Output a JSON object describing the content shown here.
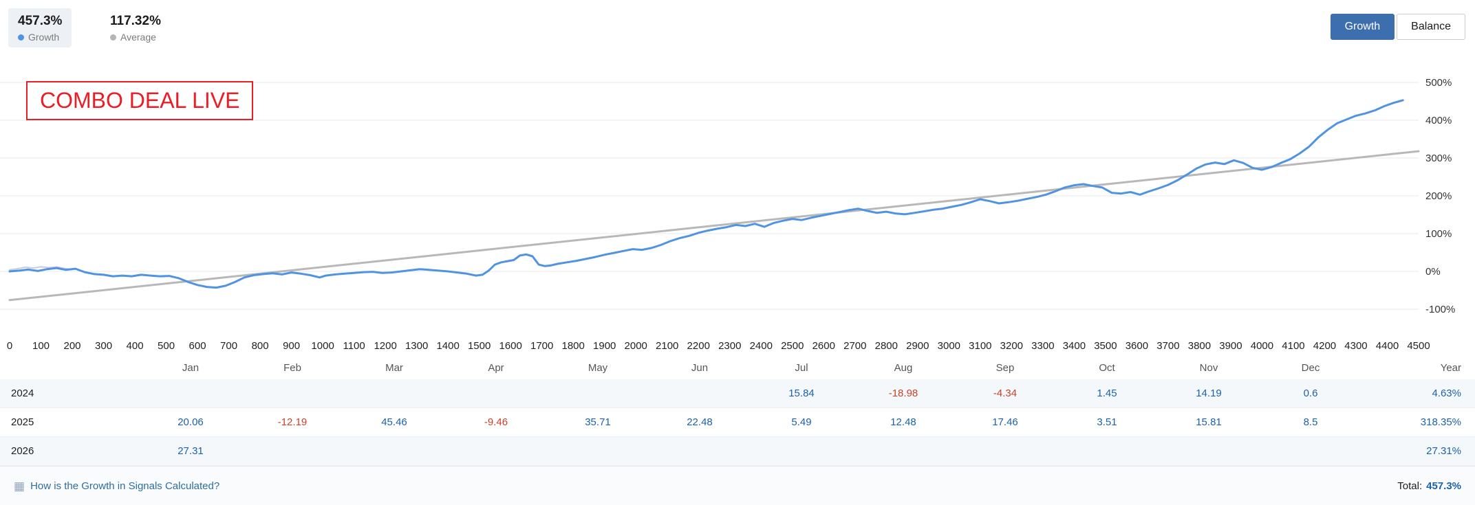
{
  "colors": {
    "accent": "#3d6fae",
    "positive": "#1b61ad",
    "negative": "#cc4125",
    "link": "#2e6da0",
    "badge": "#ec1c24",
    "dot_growth": "#4f93e2",
    "dot_average": "#b5b5b5"
  },
  "header": {
    "stats": [
      {
        "value": "457.3%",
        "label": "Growth"
      },
      {
        "value": "117.32%",
        "label": "Average"
      }
    ],
    "toggle": [
      {
        "label": "Growth"
      },
      {
        "label": "Balance"
      }
    ]
  },
  "overlay": {
    "badge": "COMBO DEAL LIVE"
  },
  "chart_data": {
    "type": "line",
    "title": "",
    "xlabel": "",
    "ylabel": "",
    "xlim": [
      0,
      4500
    ],
    "ylim": [
      -100,
      500
    ],
    "grid": "horizontal",
    "legend_position": "top-left",
    "x_ticks": [
      "0",
      "100",
      "200",
      "300",
      "400",
      "500",
      "600",
      "700",
      "800",
      "900",
      "1000",
      "1100",
      "1200",
      "1300",
      "1400",
      "1500",
      "1600",
      "1700",
      "1800",
      "1900",
      "2000",
      "2100",
      "2200",
      "2300",
      "2400",
      "2500",
      "2600",
      "2700",
      "2800",
      "2900",
      "3000",
      "3100",
      "3200",
      "3300",
      "3400",
      "3500",
      "3600",
      "3700",
      "3800",
      "3900",
      "4000",
      "4100",
      "4200",
      "4300",
      "4400",
      "4500"
    ],
    "y_ticks": [
      "500%",
      "400%",
      "300%",
      "200%",
      "100%",
      "0%",
      "-100%"
    ],
    "series": [
      {
        "name": "Growth",
        "color": "#4f93e2",
        "width": 3,
        "points": [
          [
            0,
            0
          ],
          [
            30,
            2
          ],
          [
            60,
            5
          ],
          [
            90,
            1
          ],
          [
            120,
            6
          ],
          [
            150,
            9
          ],
          [
            180,
            4
          ],
          [
            210,
            7
          ],
          [
            240,
            -2
          ],
          [
            270,
            -7
          ],
          [
            300,
            -9
          ],
          [
            330,
            -13
          ],
          [
            360,
            -11
          ],
          [
            390,
            -13
          ],
          [
            420,
            -9
          ],
          [
            450,
            -11
          ],
          [
            480,
            -13
          ],
          [
            510,
            -12
          ],
          [
            540,
            -18
          ],
          [
            570,
            -28
          ],
          [
            600,
            -36
          ],
          [
            630,
            -41
          ],
          [
            660,
            -43
          ],
          [
            690,
            -38
          ],
          [
            720,
            -28
          ],
          [
            750,
            -16
          ],
          [
            780,
            -10
          ],
          [
            810,
            -7
          ],
          [
            840,
            -5
          ],
          [
            870,
            -8
          ],
          [
            900,
            -3
          ],
          [
            930,
            -6
          ],
          [
            960,
            -10
          ],
          [
            990,
            -16
          ],
          [
            1010,
            -11
          ],
          [
            1040,
            -8
          ],
          [
            1070,
            -6
          ],
          [
            1100,
            -4
          ],
          [
            1130,
            -2
          ],
          [
            1160,
            -1
          ],
          [
            1190,
            -4
          ],
          [
            1220,
            -3
          ],
          [
            1250,
            0
          ],
          [
            1280,
            3
          ],
          [
            1310,
            6
          ],
          [
            1340,
            4
          ],
          [
            1370,
            2
          ],
          [
            1400,
            0
          ],
          [
            1430,
            -3
          ],
          [
            1460,
            -6
          ],
          [
            1490,
            -11
          ],
          [
            1510,
            -9
          ],
          [
            1530,
            2
          ],
          [
            1550,
            18
          ],
          [
            1570,
            24
          ],
          [
            1590,
            27
          ],
          [
            1610,
            30
          ],
          [
            1630,
            42
          ],
          [
            1650,
            45
          ],
          [
            1670,
            40
          ],
          [
            1690,
            18
          ],
          [
            1710,
            14
          ],
          [
            1730,
            16
          ],
          [
            1750,
            20
          ],
          [
            1780,
            24
          ],
          [
            1810,
            28
          ],
          [
            1840,
            33
          ],
          [
            1870,
            38
          ],
          [
            1900,
            44
          ],
          [
            1930,
            49
          ],
          [
            1960,
            54
          ],
          [
            1990,
            59
          ],
          [
            2020,
            57
          ],
          [
            2050,
            62
          ],
          [
            2080,
            70
          ],
          [
            2110,
            80
          ],
          [
            2140,
            88
          ],
          [
            2170,
            94
          ],
          [
            2200,
            102
          ],
          [
            2230,
            108
          ],
          [
            2260,
            113
          ],
          [
            2290,
            117
          ],
          [
            2320,
            123
          ],
          [
            2350,
            120
          ],
          [
            2380,
            126
          ],
          [
            2410,
            118
          ],
          [
            2440,
            128
          ],
          [
            2470,
            134
          ],
          [
            2500,
            139
          ],
          [
            2530,
            136
          ],
          [
            2560,
            142
          ],
          [
            2590,
            147
          ],
          [
            2620,
            152
          ],
          [
            2650,
            157
          ],
          [
            2680,
            162
          ],
          [
            2710,
            166
          ],
          [
            2740,
            160
          ],
          [
            2770,
            155
          ],
          [
            2800,
            158
          ],
          [
            2830,
            153
          ],
          [
            2860,
            151
          ],
          [
            2890,
            155
          ],
          [
            2920,
            159
          ],
          [
            2950,
            163
          ],
          [
            2980,
            166
          ],
          [
            3010,
            171
          ],
          [
            3040,
            176
          ],
          [
            3070,
            183
          ],
          [
            3100,
            191
          ],
          [
            3130,
            186
          ],
          [
            3160,
            180
          ],
          [
            3190,
            183
          ],
          [
            3220,
            187
          ],
          [
            3250,
            192
          ],
          [
            3280,
            197
          ],
          [
            3310,
            203
          ],
          [
            3340,
            212
          ],
          [
            3370,
            222
          ],
          [
            3400,
            228
          ],
          [
            3430,
            231
          ],
          [
            3460,
            226
          ],
          [
            3490,
            222
          ],
          [
            3520,
            208
          ],
          [
            3550,
            206
          ],
          [
            3580,
            210
          ],
          [
            3610,
            203
          ],
          [
            3640,
            212
          ],
          [
            3670,
            220
          ],
          [
            3700,
            229
          ],
          [
            3730,
            241
          ],
          [
            3760,
            256
          ],
          [
            3790,
            272
          ],
          [
            3820,
            283
          ],
          [
            3850,
            288
          ],
          [
            3880,
            284
          ],
          [
            3910,
            294
          ],
          [
            3940,
            287
          ],
          [
            3970,
            274
          ],
          [
            4000,
            269
          ],
          [
            4030,
            276
          ],
          [
            4060,
            287
          ],
          [
            4090,
            297
          ],
          [
            4120,
            312
          ],
          [
            4150,
            330
          ],
          [
            4180,
            355
          ],
          [
            4210,
            375
          ],
          [
            4240,
            392
          ],
          [
            4270,
            402
          ],
          [
            4300,
            412
          ],
          [
            4330,
            418
          ],
          [
            4360,
            426
          ],
          [
            4390,
            437
          ],
          [
            4420,
            446
          ],
          [
            4450,
            453
          ]
        ]
      },
      {
        "name": "Trend",
        "color": "#b8b8b8",
        "width": 3,
        "points": [
          [
            0,
            -76
          ],
          [
            4500,
            318
          ]
        ]
      },
      {
        "name": "Average",
        "color": "#c9ccd9",
        "width": 2,
        "points": [
          [
            0,
            4
          ],
          [
            25,
            7
          ],
          [
            50,
            11
          ],
          [
            75,
            9
          ],
          [
            100,
            12
          ],
          [
            125,
            10
          ],
          [
            150,
            12
          ],
          [
            175,
            8
          ],
          [
            200,
            5
          ]
        ]
      }
    ]
  },
  "axis": {
    "months": [
      "Jan",
      "Feb",
      "Mar",
      "Apr",
      "May",
      "Jun",
      "Jul",
      "Aug",
      "Sep",
      "Oct",
      "Nov",
      "Dec"
    ],
    "year_label": "Year"
  },
  "table": {
    "rows": [
      {
        "year": "2024",
        "months": [
          "",
          "",
          "",
          "",
          "",
          "",
          "15.84",
          "-18.98",
          "-4.34",
          "1.45",
          "14.19",
          "0.6"
        ],
        "total": "4.63%",
        "shaded": true
      },
      {
        "year": "2025",
        "months": [
          "20.06",
          "-12.19",
          "45.46",
          "-9.46",
          "35.71",
          "22.48",
          "5.49",
          "12.48",
          "17.46",
          "3.51",
          "15.81",
          "8.5"
        ],
        "total": "318.35%",
        "shaded": false
      },
      {
        "year": "2026",
        "months": [
          "27.31",
          "",
          "",
          "",
          "",
          "",
          "",
          "",
          "",
          "",
          "",
          ""
        ],
        "total": "27.31%",
        "shaded": true
      }
    ]
  },
  "footer": {
    "link": "How is the Growth in Signals Calculated?",
    "total_label": "Total:",
    "total_value": "457.3%"
  }
}
